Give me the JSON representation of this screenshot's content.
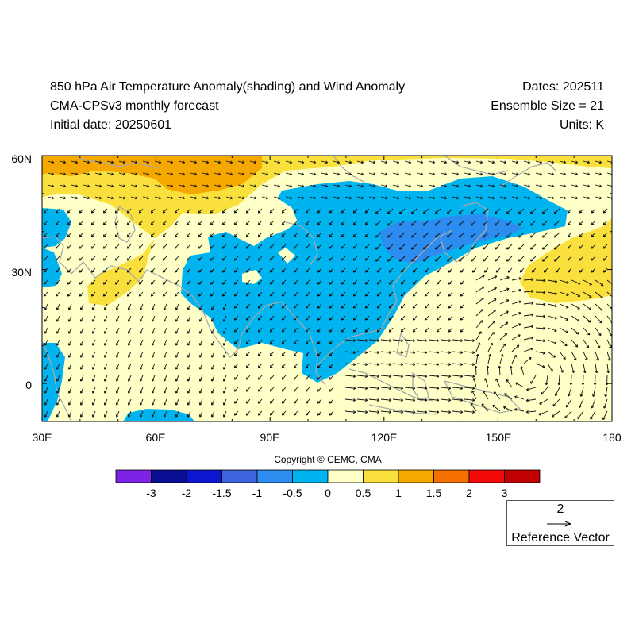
{
  "header": {
    "title": "850 hPa Air Temperature Anomaly(shading) and Wind Anomaly",
    "model": "CMA-CPSv3 monthly forecast",
    "initial_date": "Initial date: 20250601",
    "dates": "Dates: 202511",
    "ensemble": "Ensemble Size = 21",
    "units": "Units: K"
  },
  "map": {
    "lon_range": [
      30,
      180
    ],
    "lat_range": [
      -10,
      60
    ],
    "lon_ticks": [
      "30E",
      "60E",
      "90E",
      "120E",
      "150E",
      "180"
    ],
    "lat_ticks": [
      "60N",
      "30N",
      "0"
    ]
  },
  "colorbar": {
    "colors": [
      "#7e22e6",
      "#0a0f96",
      "#0a16d0",
      "#3c64dc",
      "#2c8cf0",
      "#00b4f0",
      "#ffffc8",
      "#fae03c",
      "#f5a800",
      "#f56e00",
      "#f50a0a",
      "#c00000"
    ],
    "labels": [
      "-3",
      "-2",
      "-1.5",
      "-1",
      "-0.5",
      "0",
      "0.5",
      "1",
      "1.5",
      "2",
      "3"
    ]
  },
  "copyright": "Copyright © CEMC, CMA",
  "reference_vector": {
    "magnitude": "2",
    "label": "Reference Vector"
  }
}
